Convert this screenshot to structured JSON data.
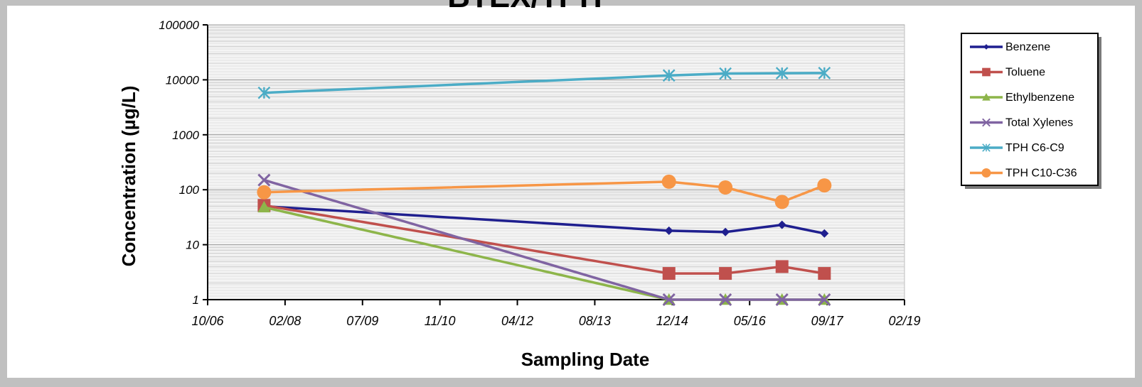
{
  "chart_data": {
    "type": "line",
    "title": "BTEX/TPH",
    "xlabel": "Sampling Date",
    "ylabel": "Concentration (µg/L)",
    "yscale": "log",
    "ylim": [
      1,
      100000
    ],
    "y_ticks": [
      "100000",
      "10000",
      "1000",
      "100",
      "10",
      "1"
    ],
    "xlim": [
      "2006-10",
      "2019-02"
    ],
    "x_ticks": [
      "10/06",
      "02/08",
      "07/09",
      "11/10",
      "04/12",
      "08/13",
      "12/14",
      "05/16",
      "09/17",
      "02/19"
    ],
    "grid": true,
    "legend_position": "right",
    "x": [
      "2007-10",
      "2014-12",
      "2015-12",
      "2016-12",
      "2017-09"
    ],
    "series": [
      {
        "name": "Benzene",
        "color": "#1f1f8f",
        "marker": "diamond",
        "values": [
          50,
          18,
          17,
          23,
          16
        ]
      },
      {
        "name": "Toluene",
        "color": "#c0504d",
        "marker": "square",
        "values": [
          52,
          3,
          3,
          4,
          3
        ]
      },
      {
        "name": "Ethylbenzene",
        "color": "#8db54a",
        "marker": "triangle",
        "values": [
          48,
          1,
          1,
          1,
          1
        ]
      },
      {
        "name": "Total Xylenes",
        "color": "#8064a2",
        "marker": "x",
        "values": [
          150,
          1,
          1,
          1,
          1
        ]
      },
      {
        "name": "TPH C6-C9",
        "color": "#4bacc6",
        "marker": "star",
        "values": [
          5800,
          12000,
          13000,
          13200,
          13300
        ]
      },
      {
        "name": "TPH C10-C36",
        "color": "#f79646",
        "marker": "circle",
        "values": [
          90,
          140,
          110,
          60,
          120
        ]
      }
    ]
  }
}
